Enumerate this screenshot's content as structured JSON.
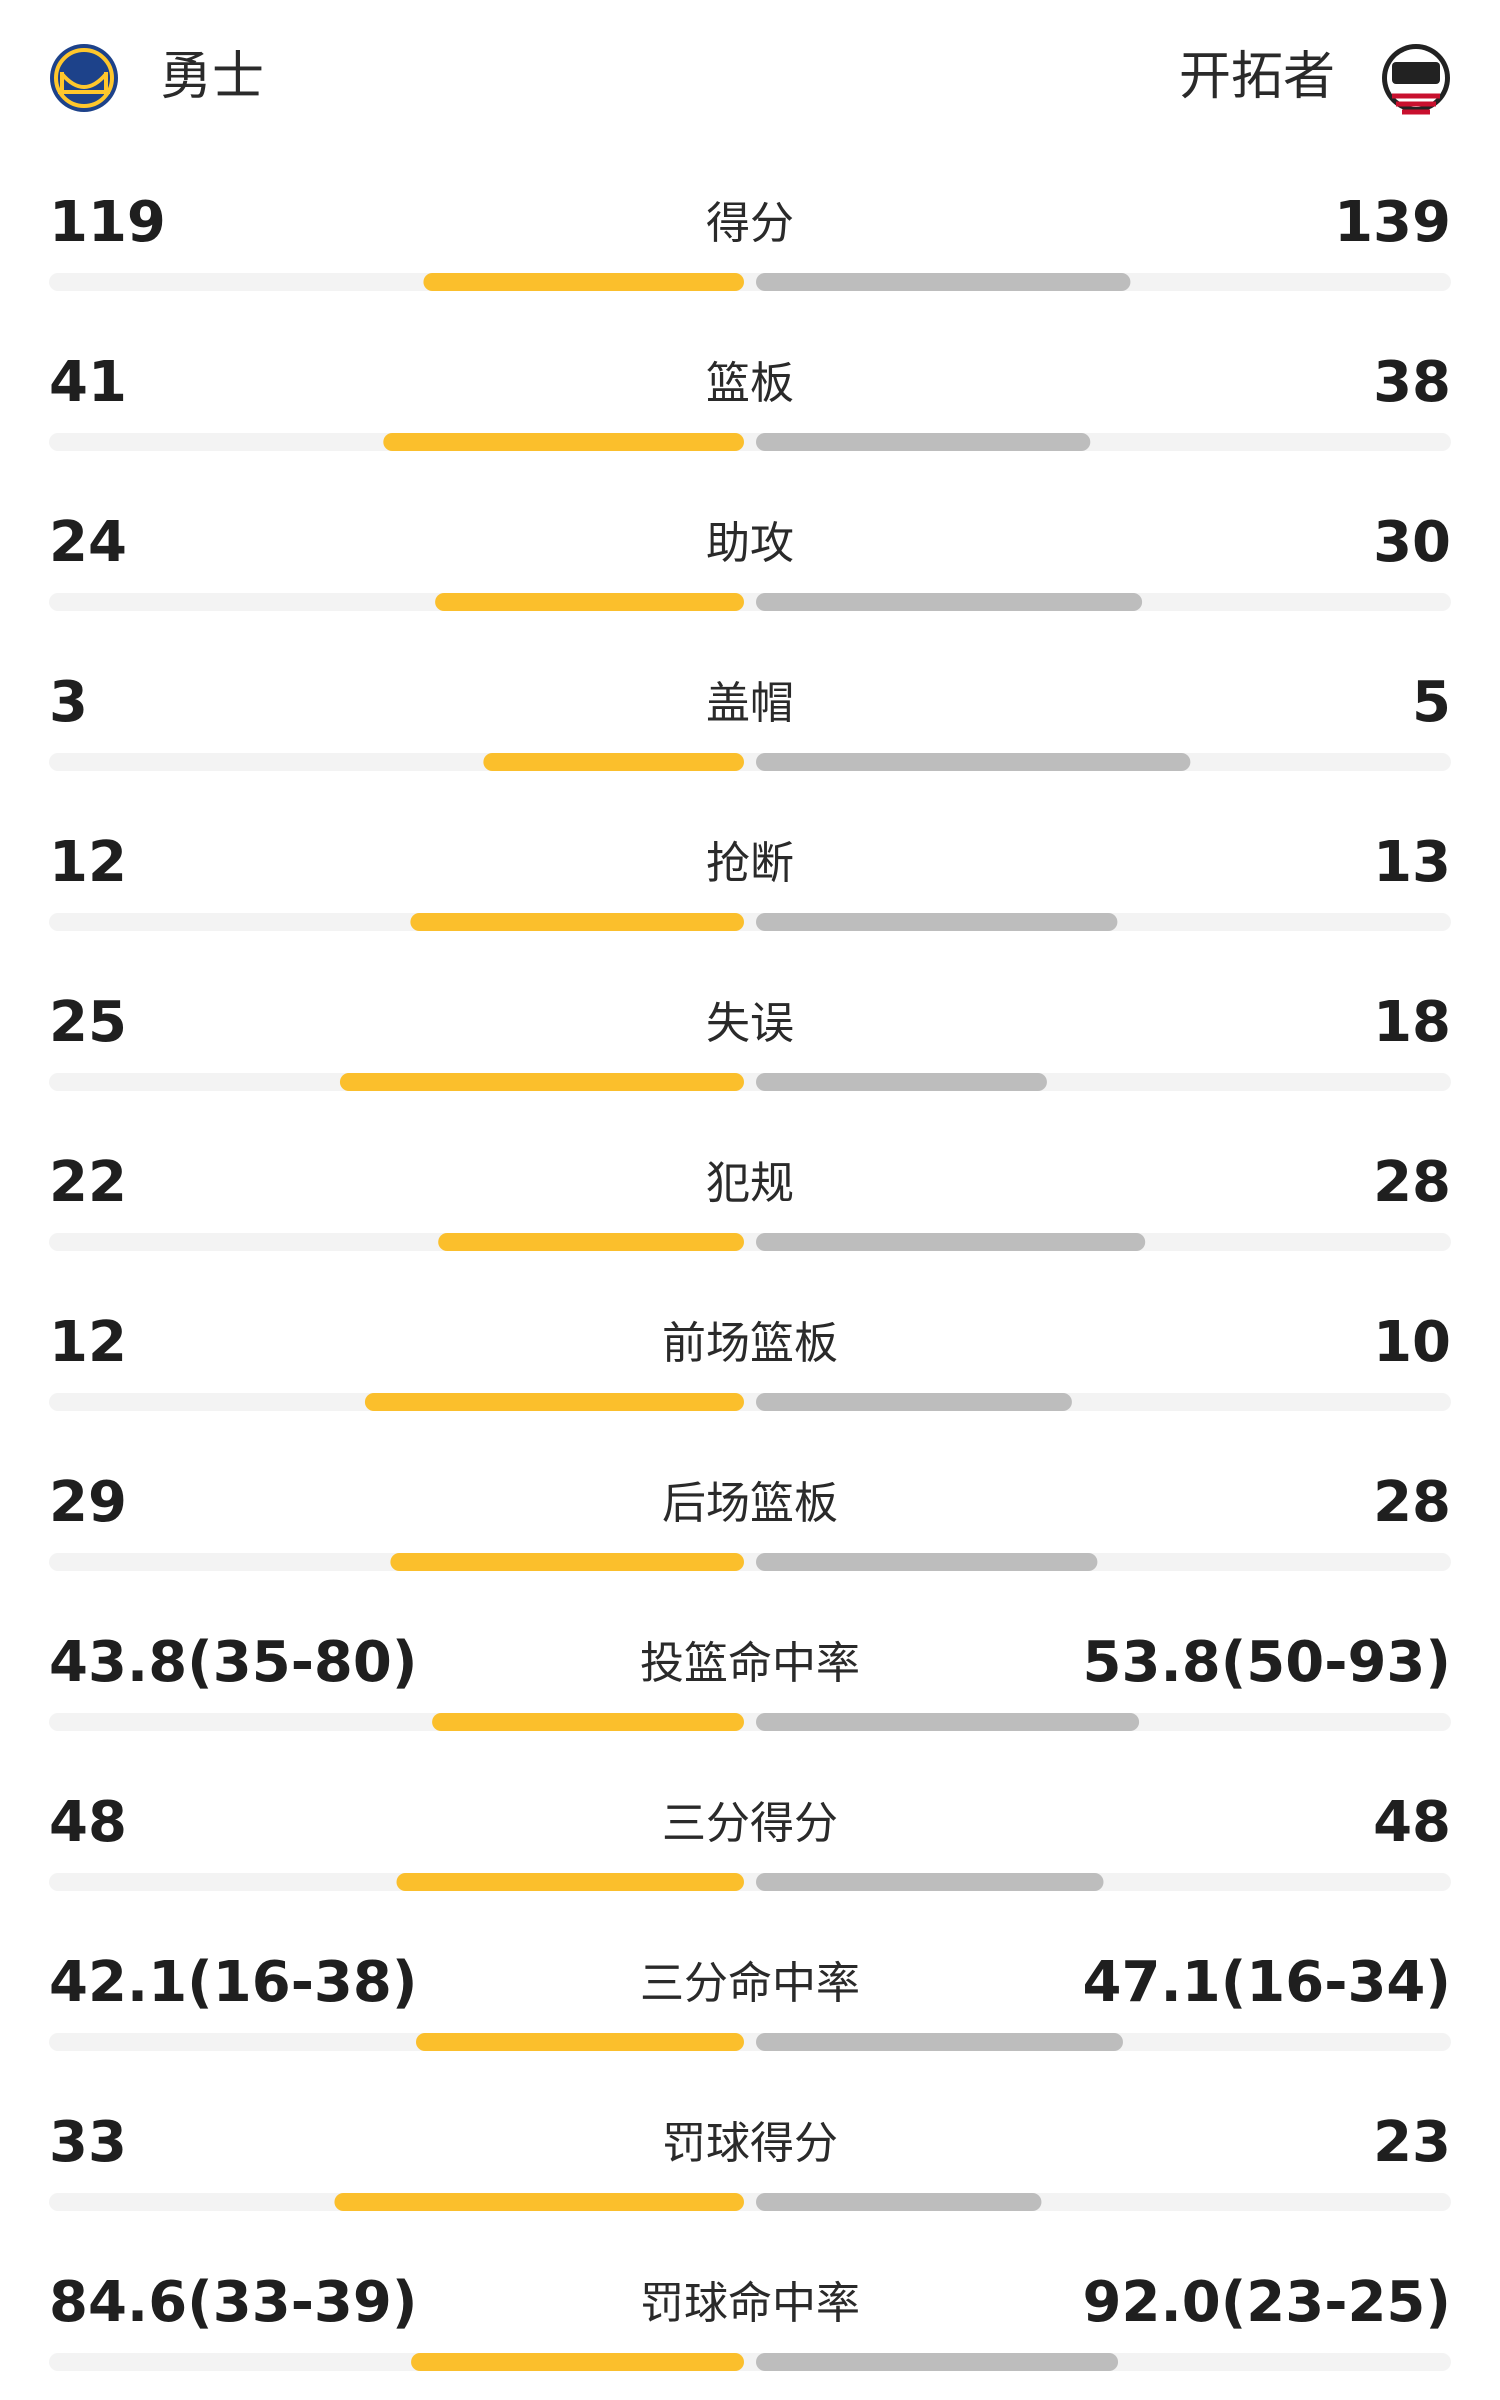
{
  "header": {
    "home": "勇士",
    "away": "开拓者"
  },
  "rows": [
    {
      "label": "得分",
      "left": 119,
      "right": 139
    },
    {
      "label": "篮板",
      "left": 41,
      "right": 38
    },
    {
      "label": "助攻",
      "left": 24,
      "right": 30
    },
    {
      "label": "盖帽",
      "left": 3,
      "right": 5
    },
    {
      "label": "抢断",
      "left": 12,
      "right": 13
    },
    {
      "label": "失误",
      "left": 25,
      "right": 18
    },
    {
      "label": "犯规",
      "left": 22,
      "right": 28
    },
    {
      "label": "前场篮板",
      "left": 12,
      "right": 10
    },
    {
      "label": "后场篮板",
      "left": 29,
      "right": 28
    },
    {
      "label": "投篮命中率",
      "left": 43.8,
      "left_label": "43.8(35-80)",
      "right": 53.8,
      "right_label": "53.8(50-93)"
    },
    {
      "label": "三分得分",
      "left": 48,
      "right": 48
    },
    {
      "label": "三分命中率",
      "left": 42.1,
      "left_label": "42.1(16-38)",
      "right": 47.1,
      "right_label": "47.1(16-34)"
    },
    {
      "label": "罚球得分",
      "left": 33,
      "right": 23
    },
    {
      "label": "罚球命中率",
      "left": 84.6,
      "left_label": "84.6(33-39)",
      "right": 92.0,
      "right_label": "92.0(23-25)"
    }
  ]
}
